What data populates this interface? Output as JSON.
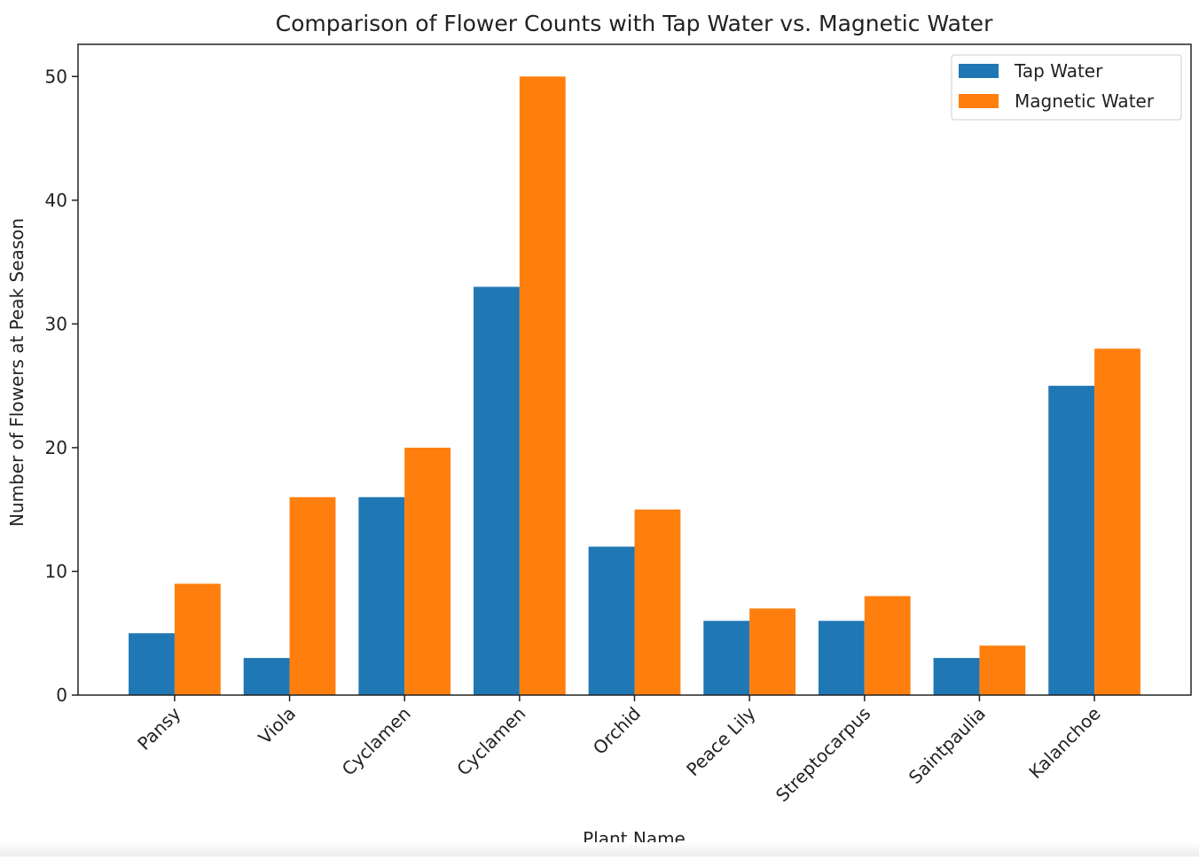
{
  "chart_data": {
    "type": "bar",
    "title": "Comparison of Flower Counts with Tap Water vs. Magnetic Water",
    "xlabel": "Plant Name",
    "ylabel": "Number of Flowers at Peak Season",
    "categories": [
      "Pansy",
      "Viola",
      "Cyclamen",
      "Cyclamen",
      "Orchid",
      "Peace Lily",
      "Streptocarpus",
      "Saintpaulia",
      "Kalanchoe"
    ],
    "series": [
      {
        "name": "Tap Water",
        "color": "#1f77b4",
        "values": [
          5,
          3,
          16,
          33,
          12,
          6,
          6,
          3,
          25
        ]
      },
      {
        "name": "Magnetic Water",
        "color": "#ff7f0e",
        "values": [
          9,
          16,
          20,
          50,
          15,
          7,
          8,
          4,
          28
        ]
      }
    ],
    "ylim": [
      0,
      52.6
    ],
    "yticks": [
      0,
      10,
      20,
      30,
      40,
      50
    ],
    "grid": false,
    "legend": "top-right"
  }
}
